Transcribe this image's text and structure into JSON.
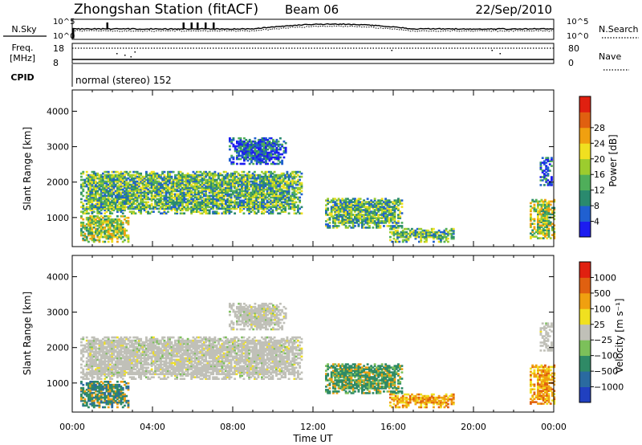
{
  "header": {
    "station": "Zhongshan Station (fitACF)",
    "beam": "Beam 06",
    "date": "22/Sep/2010"
  },
  "top_panels": {
    "nsky_label": "N.Sky",
    "nsearch_label": "N.Search",
    "freq_label_1": "Freq.",
    "freq_label_2": "[MHz]",
    "nave_label": "Nave",
    "cpid_label": "CPID",
    "cpid_value": "normal (stereo) 152",
    "noise_ticks_left": [
      "10^5",
      "10^0"
    ],
    "noise_ticks_right": [
      "10^5",
      "10^0"
    ],
    "freq_ticks": [
      "18",
      "8"
    ],
    "nave_ticks": [
      "80",
      "0"
    ]
  },
  "chart_data": [
    {
      "type": "heatmap",
      "name": "power",
      "ylabel": "Slant Range [km]",
      "ylim": [
        180,
        4600
      ],
      "yticks": [
        "1000",
        "2000",
        "3000",
        "4000"
      ],
      "xlim": [
        0,
        24
      ],
      "colorbar": {
        "label": "Power [dB]",
        "ticks": [
          "4",
          "8",
          "12",
          "16",
          "20",
          "24",
          "28"
        ],
        "colors": [
          "#1c1cf0",
          "#2060d0",
          "#2a8a6e",
          "#4fae5a",
          "#9ccc2e",
          "#f0e020",
          "#f0a010",
          "#e06010",
          "#e02010"
        ]
      },
      "blobs": [
        {
          "x0": 0.4,
          "x1": 11.4,
          "y0": 1100,
          "y1": 2300
        },
        {
          "x0": 0.4,
          "x1": 2.8,
          "y0": 300,
          "y1": 1050
        },
        {
          "x0": 7.8,
          "x1": 10.6,
          "y0": 2500,
          "y1": 3250
        },
        {
          "x0": 12.6,
          "x1": 16.4,
          "y0": 700,
          "y1": 1550
        },
        {
          "x0": 15.8,
          "x1": 19.0,
          "y0": 300,
          "y1": 700
        },
        {
          "x0": 22.8,
          "x1": 24.0,
          "y0": 400,
          "y1": 1500
        },
        {
          "x0": 23.3,
          "x1": 23.9,
          "y0": 1900,
          "y1": 2700
        }
      ]
    },
    {
      "type": "heatmap",
      "name": "velocity",
      "ylabel": "Slant Range [km]",
      "ylim": [
        180,
        4600
      ],
      "yticks": [
        "1000",
        "2000",
        "3000",
        "4000"
      ],
      "xlim": [
        0,
        24
      ],
      "xticks": [
        "00:00",
        "04:00",
        "08:00",
        "12:00",
        "16:00",
        "20:00",
        "00:00"
      ],
      "xlabel": "Time UT",
      "colorbar": {
        "label": "Velocity [m s⁻¹]",
        "ticks": [
          "1000",
          "500",
          "100",
          "25",
          "−25",
          "−100",
          "−500",
          "−1000"
        ],
        "colors": [
          "#2040c0",
          "#2a6aa0",
          "#2f8a66",
          "#7cc05a",
          "#c0c0b8",
          "#f0e020",
          "#f0a010",
          "#e06010",
          "#e02010"
        ]
      }
    }
  ]
}
